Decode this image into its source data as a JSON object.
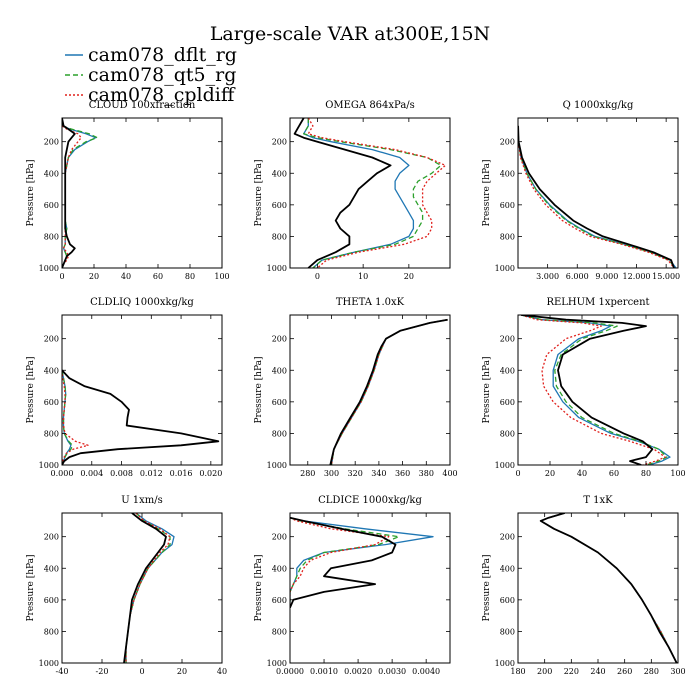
{
  "title": "Large-scale VAR at300E,15N",
  "series_names": [
    "cam078_dflt_rg",
    "cam078_qt5_rg",
    "cam078_cpldiff"
  ],
  "series_colors": [
    "#1f77b4",
    "#2ca02c",
    "#e0201c",
    "#000000"
  ],
  "chart_data": [
    {
      "type": "line",
      "title": "CLOUD 100xfraction",
      "ylabel": "Pressure [hPa]",
      "xlim": [
        0,
        100
      ],
      "ylim": [
        1000,
        50
      ],
      "xticks": [
        "0",
        "20",
        "40",
        "60",
        "80",
        "100"
      ],
      "yticks": [
        "200",
        "400",
        "600",
        "800",
        "1000"
      ],
      "y": [
        50,
        100,
        120,
        150,
        175,
        200,
        250,
        300,
        400,
        500,
        600,
        700,
        750,
        800,
        850,
        875,
        900,
        925,
        950,
        975,
        1000
      ],
      "series": [
        {
          "values": [
            0,
            0,
            5,
            15,
            21,
            16,
            8,
            4,
            2,
            2,
            2,
            2,
            3,
            2,
            2,
            1,
            2,
            3,
            2,
            1,
            0
          ]
        },
        {
          "values": [
            0,
            0,
            6,
            17,
            22,
            15,
            7,
            4,
            2,
            2,
            2,
            2,
            3,
            2,
            2,
            1,
            2,
            3,
            2,
            1,
            0
          ]
        },
        {
          "values": [
            0,
            0,
            3,
            10,
            12,
            10,
            6,
            4,
            2,
            2,
            2,
            2,
            2,
            2,
            2,
            1,
            3,
            4,
            3,
            1,
            0
          ]
        },
        {
          "values": [
            0,
            1,
            4,
            8,
            6,
            4,
            3,
            2,
            2,
            2,
            2,
            2,
            2,
            3,
            5,
            8,
            6,
            3,
            2,
            1,
            0
          ]
        }
      ]
    },
    {
      "type": "line",
      "title": "OMEGA 864xPa/s",
      "ylabel": "Pressure [hPa]",
      "xlim": [
        -6,
        29
      ],
      "ylim": [
        1000,
        50
      ],
      "xticks": [
        "0",
        "10",
        "20"
      ],
      "yticks": [
        "200",
        "400",
        "600",
        "800",
        "1000"
      ],
      "y": [
        50,
        100,
        150,
        175,
        200,
        250,
        300,
        350,
        400,
        450,
        500,
        550,
        600,
        650,
        700,
        750,
        800,
        850,
        900,
        950,
        1000
      ],
      "series": [
        {
          "values": [
            -2,
            -2,
            -3,
            -1,
            3,
            12,
            18,
            20,
            18,
            17,
            17,
            18,
            19,
            20,
            21,
            21,
            20,
            16,
            8,
            1,
            -1
          ]
        },
        {
          "values": [
            -2,
            -2,
            -3,
            0,
            5,
            16,
            24,
            27,
            25,
            22,
            21,
            21,
            22,
            23,
            23,
            22,
            21,
            17,
            8,
            1,
            -1
          ]
        },
        {
          "values": [
            -2,
            -1,
            -2,
            1,
            6,
            17,
            24,
            28,
            26,
            24,
            23,
            23,
            23,
            24,
            25,
            25,
            24,
            19,
            9,
            2,
            0
          ]
        },
        {
          "values": [
            -3,
            -4,
            -5,
            -3,
            0,
            6,
            12,
            16,
            13,
            11,
            9,
            8,
            7,
            5,
            4,
            5,
            7,
            7,
            4,
            0,
            -2
          ]
        }
      ]
    },
    {
      "type": "line",
      "title": "Q 1000xkg/kg",
      "ylabel": "Pressure [hPa]",
      "xlim": [
        0,
        16.2
      ],
      "ylim": [
        1000,
        50
      ],
      "xticks": [
        "3.000",
        "6.000",
        "9.000",
        "12.000",
        "15.000"
      ],
      "yticks": [
        "200",
        "400",
        "600",
        "800",
        "1000"
      ],
      "y": [
        100,
        200,
        300,
        400,
        500,
        600,
        700,
        750,
        800,
        850,
        900,
        950,
        1000
      ],
      "series": [
        {
          "values": [
            0.01,
            0.05,
            0.3,
            0.9,
            1.8,
            3.2,
            5.0,
            6.3,
            7.8,
            10.8,
            13.5,
            15.4,
            16.0
          ]
        },
        {
          "values": [
            0.01,
            0.05,
            0.3,
            0.9,
            1.8,
            3.1,
            4.9,
            6.2,
            7.6,
            10.7,
            13.4,
            15.3,
            15.9
          ]
        },
        {
          "values": [
            0.01,
            0.04,
            0.25,
            0.8,
            1.6,
            2.8,
            4.5,
            5.8,
            7.3,
            10.5,
            13.2,
            15.2,
            15.8
          ]
        },
        {
          "values": [
            0.01,
            0.06,
            0.4,
            1.1,
            2.2,
            3.7,
            5.6,
            7.0,
            8.6,
            11.2,
            13.7,
            15.5,
            15.8
          ]
        }
      ]
    },
    {
      "type": "line",
      "title": "CLDLIQ 1000xkg/kg",
      "ylabel": "Pressure [hPa]",
      "xlim": [
        0,
        0.0215
      ],
      "ylim": [
        1000,
        50
      ],
      "xticks": [
        "0.000",
        "0.004",
        "0.008",
        "0.012",
        "0.016",
        "0.020"
      ],
      "yticks": [
        "200",
        "400",
        "600",
        "800",
        "1000"
      ],
      "y": [
        400,
        450,
        500,
        550,
        600,
        650,
        700,
        750,
        800,
        850,
        875,
        900,
        925,
        950,
        975,
        1000
      ],
      "series": [
        {
          "values": [
            0,
            0.0002,
            0.0004,
            0.0005,
            0.0004,
            0.0003,
            0.0002,
            0.0002,
            0.0003,
            0.0008,
            0.0012,
            0.001,
            0.0006,
            0.0004,
            0.0002,
            0
          ]
        },
        {
          "values": [
            0,
            0.0002,
            0.0004,
            0.0005,
            0.0004,
            0.0003,
            0.0002,
            0.0002,
            0.0003,
            0.0009,
            0.0014,
            0.0012,
            0.0007,
            0.0004,
            0.0002,
            0
          ]
        },
        {
          "values": [
            0,
            0.0001,
            0.0003,
            0.0004,
            0.0004,
            0.0003,
            0.0002,
            0.0002,
            0.0004,
            0.0018,
            0.0035,
            0.0015,
            0.0006,
            0.0003,
            0.0001,
            0
          ]
        },
        {
          "values": [
            0,
            0.001,
            0.003,
            0.0065,
            0.008,
            0.009,
            0.0088,
            0.0087,
            0.016,
            0.021,
            0.016,
            0.0075,
            0.0025,
            0.001,
            0.0003,
            0
          ]
        }
      ]
    },
    {
      "type": "line",
      "title": "THETA 1.0xK",
      "ylabel": "Pressure [hPa]",
      "xlim": [
        265,
        400
      ],
      "ylim": [
        1000,
        50
      ],
      "xticks": [
        "280",
        "300",
        "320",
        "340",
        "360",
        "380",
        "400"
      ],
      "yticks": [
        "200",
        "400",
        "600",
        "800",
        "1000"
      ],
      "y": [
        80,
        100,
        150,
        200,
        250,
        300,
        400,
        500,
        600,
        700,
        800,
        900,
        1000
      ],
      "series": [
        {
          "values": [
            398,
            383,
            358,
            346,
            343,
            340,
            336,
            331,
            325,
            317,
            309,
            302,
            300
          ]
        },
        {
          "values": [
            398,
            383,
            358,
            346,
            343,
            340,
            336,
            331,
            325,
            317,
            309,
            302,
            300
          ]
        },
        {
          "values": [
            398,
            383,
            358,
            346,
            343,
            340,
            336,
            331,
            325,
            317,
            309,
            302,
            300
          ]
        },
        {
          "values": [
            398,
            383,
            358,
            346,
            342,
            339,
            335,
            330,
            324,
            316,
            308,
            302,
            299
          ]
        }
      ]
    },
    {
      "type": "line",
      "title": "RELHUM 1xpercent",
      "ylabel": "Pressure [hPa]",
      "xlim": [
        0,
        100
      ],
      "ylim": [
        1000,
        50
      ],
      "xticks": [
        "0",
        "20",
        "40",
        "60",
        "80",
        "100"
      ],
      "yticks": [
        "200",
        "400",
        "600",
        "800",
        "1000"
      ],
      "y": [
        50,
        80,
        100,
        120,
        150,
        200,
        300,
        400,
        500,
        600,
        700,
        800,
        850,
        900,
        950,
        975,
        1000
      ],
      "series": [
        {
          "values": [
            2,
            15,
            45,
            58,
            52,
            38,
            25,
            22,
            22,
            28,
            38,
            58,
            75,
            88,
            95,
            90,
            82
          ]
        },
        {
          "values": [
            2,
            15,
            48,
            62,
            55,
            40,
            27,
            23,
            24,
            30,
            40,
            60,
            76,
            88,
            93,
            88,
            80
          ]
        },
        {
          "values": [
            2,
            12,
            40,
            52,
            45,
            30,
            18,
            15,
            16,
            22,
            33,
            52,
            70,
            85,
            92,
            86,
            78
          ]
        },
        {
          "values": [
            2,
            30,
            65,
            80,
            66,
            45,
            28,
            25,
            27,
            34,
            46,
            66,
            78,
            84,
            80,
            70,
            77
          ]
        }
      ]
    },
    {
      "type": "line",
      "title": "U 1xm/s",
      "ylabel": "Pressure [hPa]",
      "xlim": [
        -40,
        40
      ],
      "ylim": [
        1000,
        50
      ],
      "xticks": [
        "-40",
        "-20",
        "0",
        "20",
        "40"
      ],
      "yticks": [
        "200",
        "400",
        "600",
        "800",
        "1000"
      ],
      "y": [
        50,
        100,
        150,
        200,
        250,
        300,
        400,
        500,
        600,
        700,
        800,
        900,
        1000
      ],
      "series": [
        {
          "values": [
            -3,
            2,
            10,
            16,
            15,
            10,
            3,
            -1,
            -4,
            -6,
            -7,
            -8,
            -8
          ]
        },
        {
          "values": [
            -3,
            1,
            8,
            14,
            14,
            10,
            3,
            -1,
            -4,
            -6,
            -7,
            -8,
            -8
          ]
        },
        {
          "values": [
            -3,
            1,
            9,
            14,
            13,
            9,
            3,
            -1,
            -4,
            -6,
            -7,
            -8,
            -8
          ]
        },
        {
          "values": [
            -5,
            0,
            7,
            12,
            11,
            8,
            2,
            -2,
            -5,
            -6,
            -7,
            -8,
            -9
          ]
        }
      ]
    },
    {
      "type": "line",
      "title": "CLDICE 1000xkg/kg",
      "ylabel": "Pressure [hPa]",
      "xlim": [
        0,
        0.0047
      ],
      "ylim": [
        1000,
        50
      ],
      "xticks": [
        "0.0000",
        "0.0010",
        "0.0020",
        "0.0030",
        "0.0040"
      ],
      "yticks": [
        "200",
        "400",
        "600",
        "800",
        "1000"
      ],
      "y": [
        80,
        100,
        150,
        200,
        250,
        300,
        350,
        400,
        450,
        500,
        550,
        600,
        650
      ],
      "series": [
        {
          "values": [
            0,
            0.0004,
            0.0022,
            0.0042,
            0.0028,
            0.001,
            0.0004,
            0.0002,
            0.0002,
            0.0001,
            0,
            0,
            0
          ]
        },
        {
          "values": [
            0,
            0.0003,
            0.0016,
            0.0032,
            0.0026,
            0.001,
            0.0005,
            0.0003,
            0.0002,
            0.0001,
            0,
            0,
            0
          ]
        },
        {
          "values": [
            0,
            0.0002,
            0.0012,
            0.0029,
            0.0025,
            0.0012,
            0.0006,
            0.0004,
            0.0003,
            0.0001,
            0,
            0,
            0
          ]
        },
        {
          "values": [
            0,
            0.0004,
            0.0015,
            0.0027,
            0.0031,
            0.003,
            0.0024,
            0.0012,
            0.001,
            0.0025,
            0.001,
            0.0001,
            0
          ]
        }
      ]
    },
    {
      "type": "line",
      "title": "T 1xK",
      "ylabel": "Pressure [hPa]",
      "xlim": [
        180,
        300
      ],
      "ylim": [
        1000,
        50
      ],
      "xticks": [
        "180",
        "200",
        "220",
        "240",
        "260",
        "280",
        "300"
      ],
      "yticks": [
        "200",
        "400",
        "600",
        "800",
        "1000"
      ],
      "y": [
        50,
        80,
        100,
        150,
        200,
        300,
        400,
        500,
        600,
        700,
        800,
        900,
        1000
      ],
      "series": [
        {
          "values": [
            215,
            203,
            197,
            207,
            220,
            240,
            254,
            265,
            273,
            280,
            287,
            293,
            299
          ]
        },
        {
          "values": [
            215,
            203,
            197,
            207,
            220,
            240,
            254,
            265,
            273,
            280,
            287,
            293,
            299
          ]
        },
        {
          "values": [
            215,
            203,
            197,
            207,
            220,
            240,
            254,
            265,
            273,
            280,
            287,
            293,
            299
          ]
        },
        {
          "values": [
            215,
            203,
            197,
            207,
            220,
            240,
            254,
            265,
            273,
            280,
            286,
            293,
            299
          ]
        }
      ]
    }
  ]
}
